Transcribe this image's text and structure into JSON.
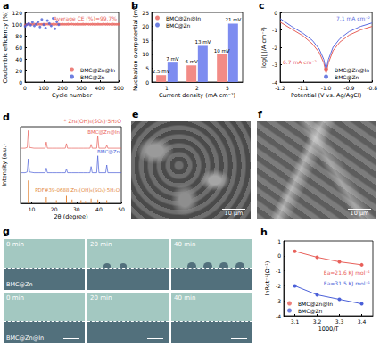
{
  "chart_data": [
    {
      "type": "scatter",
      "title": "a",
      "x_label": "Cycle number",
      "y_label": "Coulombic efficiency (%)",
      "xlim": [
        0,
        500
      ],
      "xticks": [
        0,
        100,
        200,
        300,
        400,
        500
      ],
      "ylim": [
        0,
        120
      ],
      "yticks": [
        0,
        20,
        40,
        60,
        80,
        100,
        120
      ],
      "annotations": [
        "Average CE (%)=99.7%"
      ],
      "legend": "bottom-right",
      "series": [
        {
          "name": "BMC@Zn@In",
          "color": "#e8605a",
          "marker": "circle",
          "x": [
            1,
            10,
            20,
            30,
            40,
            50,
            60,
            70,
            80,
            90,
            100,
            110,
            120,
            130,
            140,
            150,
            160,
            170,
            180,
            190,
            200,
            210,
            220,
            230,
            240,
            250,
            260,
            270,
            280,
            290,
            300,
            310,
            320,
            330,
            340,
            350,
            360,
            370,
            380,
            390,
            400,
            410,
            420,
            430,
            440,
            450,
            460,
            470,
            480,
            490,
            500
          ],
          "values": [
            98.2,
            99.5,
            99.8,
            99.6,
            99.7,
            99.9,
            99.6,
            99.8,
            99.7,
            99.5,
            99.8,
            99.7,
            99.9,
            99.6,
            99.7,
            99.8,
            99.7,
            99.6,
            99.9,
            99.7,
            99.8,
            99.6,
            99.7,
            99.8,
            99.7,
            99.9,
            99.6,
            99.7,
            99.8,
            99.7,
            99.6,
            99.8,
            99.7,
            99.9,
            99.7,
            99.6,
            99.8,
            99.7,
            99.7,
            99.8,
            99.6,
            99.7,
            99.9,
            99.7,
            99.8,
            99.6,
            99.7,
            99.8,
            99.7,
            99.7,
            99.8
          ]
        },
        {
          "name": "BMC@Zn",
          "color": "#4a5fd8",
          "marker": "circle",
          "x": [
            1,
            10,
            20,
            30,
            40,
            50,
            60,
            70,
            80,
            90,
            100,
            110,
            120,
            130,
            140,
            150,
            160,
            170,
            180
          ],
          "values": [
            96,
            99,
            101,
            98,
            103,
            97,
            100,
            104,
            95,
            108,
            99,
            93,
            106,
            101,
            97,
            110,
            92,
            104,
            99
          ]
        }
      ]
    },
    {
      "type": "bar",
      "title": "b",
      "x_label": "Current density (mA cm⁻²)",
      "y_label": "Nucleation overpotential (mV)",
      "categories": [
        "1",
        "2",
        "5"
      ],
      "ylim": [
        0,
        25
      ],
      "yticks": [
        0,
        5,
        10,
        15,
        20,
        25
      ],
      "legend": "top-left",
      "data_labels": true,
      "series": [
        {
          "name": "BMC@Zn@In",
          "color": "#f28b86",
          "values": [
            2.5,
            6,
            10
          ],
          "value_labels": [
            "2.5 mV",
            "6 mV",
            "10 mV"
          ]
        },
        {
          "name": "BMC@Zn",
          "color": "#7d8cf0",
          "values": [
            7,
            13,
            21
          ],
          "value_labels": [
            "7 mV",
            "13 mV",
            "21 mV"
          ]
        }
      ]
    },
    {
      "type": "line",
      "title": "c",
      "x_label": "Potential (V vs. Ag/AgCl)",
      "y_label": "log(|j|/A cm⁻²)",
      "x": [
        -1.2,
        -1.15,
        -1.1,
        -1.06,
        -1.03,
        -1.01,
        -1.0,
        -0.99,
        -0.97,
        -0.94,
        -0.9,
        -0.85,
        -0.8
      ],
      "xlim": [
        -1.2,
        -0.8
      ],
      "xticks": [
        -1.2,
        -1.1,
        {
          "value": -1,
          "label": "-1.0"
        },
        -0.9,
        -0.8
      ],
      "ylim": [
        -4,
        0
      ],
      "yticks": [
        -4,
        -3,
        -2,
        -1,
        0
      ],
      "annotations": [
        "6.7 mA cm⁻²",
        "7.1 mA cm⁻²"
      ],
      "legend": "bottom-right",
      "series": [
        {
          "name": "BMC@Zn@In",
          "color": "#e8605a",
          "values": [
            -0.55,
            -0.95,
            -1.35,
            -1.8,
            -2.3,
            -2.9,
            -3.5,
            -2.9,
            -2.2,
            -1.7,
            -1.3,
            -1.0,
            -0.8
          ]
        },
        {
          "name": "BMC@Zn",
          "color": "#5b6be0",
          "values": [
            -0.35,
            -0.8,
            -1.2,
            -1.6,
            -2.1,
            -2.7,
            -3.3,
            -2.7,
            -2.0,
            -1.5,
            -1.1,
            -0.8,
            -0.6
          ]
        }
      ]
    },
    {
      "type": "line",
      "title": "d",
      "x_label": "2θ (degree)",
      "y_label": "Intensity (a.u.)",
      "xlim": [
        5,
        50
      ],
      "xticks": [
        10,
        20,
        30,
        40,
        50
      ],
      "ylim": [
        0,
        100
      ],
      "tick_labels": "x",
      "annotations": [
        "* Zn₄(OH)₆(SO₄)·5H₂O"
      ],
      "series": [
        {
          "name": "BMC@Zn@In",
          "color": "#e8605a",
          "x": [
            5,
            7,
            8,
            8.5,
            9,
            11,
            13,
            16,
            16.5,
            17,
            19,
            21,
            23,
            25,
            25.5,
            26,
            28,
            31,
            33,
            35,
            36,
            36.5,
            37,
            39,
            39.5,
            40,
            42,
            43,
            43.5,
            44,
            46,
            48,
            50
          ],
          "values": [
            72,
            72,
            73,
            95,
            73,
            72,
            72,
            72,
            80,
            72,
            72,
            72,
            72,
            72,
            78,
            72,
            72,
            72,
            72,
            72,
            72,
            77,
            72,
            72,
            88,
            72,
            72,
            72,
            76,
            72,
            72,
            72,
            72
          ]
        },
        {
          "name": "BMC@Zn",
          "color": "#4a5fd8",
          "x": [
            5,
            7,
            8,
            8.5,
            9,
            11,
            13,
            16,
            16.5,
            17,
            19,
            21,
            23,
            25,
            25.5,
            26,
            28,
            31,
            33,
            35,
            36,
            36.5,
            37,
            39,
            39.5,
            40,
            42,
            43,
            43.5,
            44,
            46,
            48,
            50
          ],
          "values": [
            40,
            40,
            41,
            58,
            41,
            40,
            40,
            40,
            46,
            40,
            40,
            40,
            40,
            40,
            45,
            40,
            40,
            40,
            40,
            40,
            40,
            48,
            40,
            40,
            62,
            40,
            40,
            40,
            50,
            40,
            40,
            40,
            40
          ]
        },
        {
          "name": "PDF#39-0688 Zn₄(OH)₆(SO₄)·5H₂O",
          "type": "bar",
          "color": "#e3873a",
          "x": [
            8.5,
            16.5,
            21,
            25.5,
            28,
            32,
            34,
            36.5,
            39.5,
            43.5
          ],
          "values": [
            30,
            8,
            4,
            10,
            5,
            4,
            3,
            6,
            5,
            4
          ]
        }
      ]
    },
    {
      "type": "line",
      "title": "h",
      "x_label": "1000/T",
      "y_label": "lnRct⁻¹(Ω⁻¹)",
      "x": [
        3.1,
        3.2,
        3.3,
        3.4
      ],
      "xlim": [
        3.05,
        3.45
      ],
      "xticks": [
        3.1,
        3.2,
        3.3,
        3.4
      ],
      "ylim": [
        -4,
        1
      ],
      "yticks": [
        -4,
        -3,
        -2,
        -1,
        0,
        1
      ],
      "marker": "circle",
      "legend": "bottom-left",
      "annotations": [
        "Ea=21.6 KJ mol⁻¹",
        "Ea=31.5 KJ mol⁻¹"
      ],
      "series": [
        {
          "name": "BMC@Zn@In",
          "color": "#e8605a",
          "values": [
            0.3,
            -0.1,
            -0.4,
            -0.6
          ]
        },
        {
          "name": "BMC@Zn",
          "color": "#4a5fd8",
          "values": [
            -2.0,
            -2.6,
            -2.9,
            -3.2
          ]
        }
      ]
    }
  ],
  "images": {
    "e": {
      "title": "e",
      "scale_bar": "10 μm"
    },
    "f": {
      "title": "f",
      "scale_bar": "10 μm"
    },
    "g": {
      "title": "g",
      "times": [
        "0 min",
        "20 min",
        "40 min"
      ],
      "rows": [
        "BMC@Zn",
        "BMC@Zn@In"
      ]
    }
  }
}
